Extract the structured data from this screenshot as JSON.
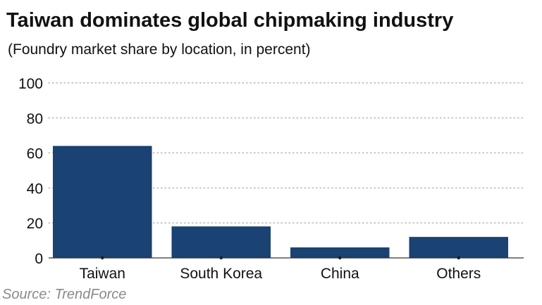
{
  "chart_data": {
    "type": "bar",
    "title": "Taiwan dominates global chipmaking industry",
    "subtitle": "(Foundry market share by location, in percent)",
    "source": "Source: TrendForce",
    "categories": [
      "Taiwan",
      "South Korea",
      "China",
      "Others"
    ],
    "values": [
      64,
      18,
      6,
      12
    ],
    "ylim": [
      0,
      100
    ],
    "yticks": [
      0,
      20,
      40,
      60,
      80,
      100
    ],
    "xlabel": "",
    "ylabel": "",
    "grid": true,
    "legend": "none",
    "colors": {
      "bar": "#1a4272",
      "grid": "#b3b3b3",
      "axis": "#333333",
      "text": "#111111",
      "source": "#8a8a8a"
    }
  }
}
